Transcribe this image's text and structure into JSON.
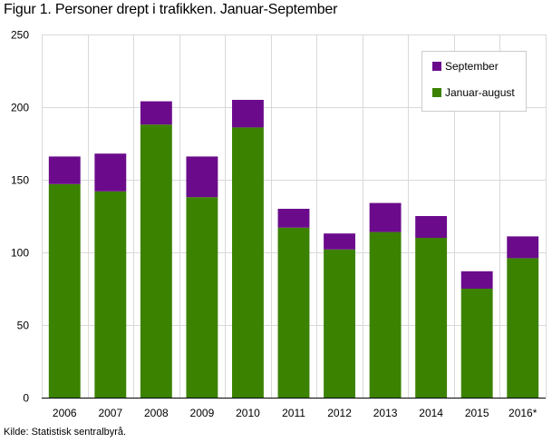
{
  "title": "Figur 1. Personer drept i trafikken. Januar-September",
  "source": "Kilde: Statistisk sentralbyrå.",
  "colors": {
    "januar_august": "#3b8200",
    "september": "#6b0b8c",
    "grid": "#d9d9d9",
    "legend_border": "#cccccc"
  },
  "chart_data": {
    "type": "bar",
    "stacked": true,
    "categories": [
      "2006",
      "2007",
      "2008",
      "2009",
      "2010",
      "2011",
      "2012",
      "2013",
      "2014",
      "2015",
      "2016*"
    ],
    "series": [
      {
        "name": "Januar-august",
        "values": [
          147,
          142,
          188,
          138,
          186,
          117,
          102,
          114,
          110,
          75,
          96
        ]
      },
      {
        "name": "September",
        "values": [
          19,
          26,
          16,
          28,
          19,
          13,
          11,
          20,
          15,
          12,
          15
        ]
      }
    ],
    "ylim": [
      0,
      250
    ],
    "yticks": [
      0,
      50,
      100,
      150,
      200,
      250
    ],
    "grid": true,
    "legend": "top-right",
    "legend_order": [
      "September",
      "Januar-august"
    ]
  }
}
